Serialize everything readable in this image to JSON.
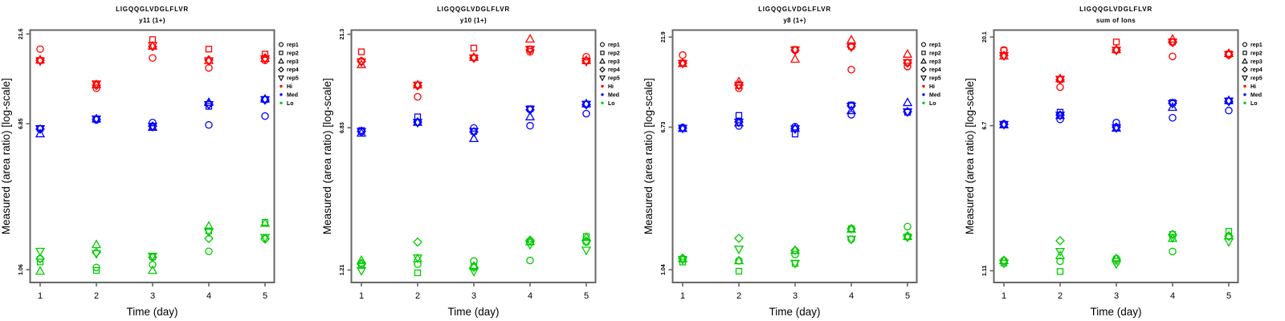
{
  "figure": {
    "xlabel": "Time (day)",
    "ylabel": "Measured (area ratio) [log-scale]",
    "background": "#ffffff",
    "frame_color": "#666666",
    "text_color": "#000000"
  },
  "legend": {
    "reps": [
      {
        "label": "rep1",
        "symbol": "circle"
      },
      {
        "label": "rep2",
        "symbol": "square"
      },
      {
        "label": "rep3",
        "symbol": "triangle-up"
      },
      {
        "label": "rep4",
        "symbol": "diamond"
      },
      {
        "label": "rep5",
        "symbol": "triangle-down"
      }
    ],
    "levels": [
      {
        "label": "Hi",
        "color": "#FF0000"
      },
      {
        "label": "Med",
        "color": "#0000FF"
      },
      {
        "label": "Lo",
        "color": "#00CC00"
      }
    ]
  },
  "chart_data": [
    {
      "type": "scatter",
      "title": "LIGQQGLVDGLFLVR",
      "subtitle": "y11 (1+)",
      "xlabel": "Time (day)",
      "ylabel": "Measured (area ratio) [log-scale]",
      "log_scale": true,
      "x": [
        1,
        2,
        3,
        4,
        5
      ],
      "xticks": [
        "1",
        "2",
        "3",
        "4",
        "5"
      ],
      "yticks": [
        {
          "value": 21.6,
          "label": "21.6"
        },
        {
          "value": 6.85,
          "label": "6.85"
        },
        {
          "value": 1.06,
          "label": "1.06"
        }
      ],
      "ylim": [
        0.9,
        22.7
      ],
      "groups": [
        {
          "name": "Hi",
          "color": "#FF0000",
          "reps": [
            {
              "name": "rep1",
              "symbol": "circle",
              "values": [
                17.8,
                10.8,
                15.9,
                14.0,
                15.4
              ]
            },
            {
              "name": "rep2",
              "symbol": "square",
              "values": [
                15.4,
                11.3,
                20.1,
                17.8,
                16.7
              ]
            },
            {
              "name": "rep3",
              "symbol": "triangle-up",
              "values": [
                15.5,
                11.3,
                18.5,
                15.4,
                15.8
              ]
            },
            {
              "name": "rep4",
              "symbol": "diamond",
              "values": [
                15.4,
                11.2,
                18.4,
                15.5,
                15.9
              ]
            },
            {
              "name": "rep5",
              "symbol": "triangle-down",
              "values": [
                15.3,
                11.4,
                18.6,
                15.3,
                15.7
              ]
            }
          ]
        },
        {
          "name": "Med",
          "color": "#0000FF",
          "reps": [
            {
              "name": "rep1",
              "symbol": "circle",
              "values": [
                6.42,
                7.2,
                6.96,
                6.75,
                7.56
              ]
            },
            {
              "name": "rep2",
              "symbol": "square",
              "values": [
                6.45,
                7.26,
                6.6,
                8.56,
                9.35
              ]
            },
            {
              "name": "rep3",
              "symbol": "triangle-up",
              "values": [
                6.03,
                7.3,
                6.55,
                9.0,
                9.4
              ]
            },
            {
              "name": "rep4",
              "symbol": "diamond",
              "values": [
                6.4,
                7.25,
                6.65,
                8.8,
                9.3
              ]
            },
            {
              "name": "rep5",
              "symbol": "triangle-down",
              "values": [
                6.43,
                7.28,
                6.62,
                8.75,
                9.32
              ]
            }
          ]
        },
        {
          "name": "Lo",
          "color": "#00CC00",
          "reps": [
            {
              "name": "rep1",
              "symbol": "circle",
              "values": [
                1.22,
                1.09,
                1.13,
                1.34,
                1.58
              ]
            },
            {
              "name": "rep2",
              "symbol": "square",
              "values": [
                1.17,
                1.05,
                1.25,
                1.74,
                1.94
              ]
            },
            {
              "name": "rep3",
              "symbol": "triangle-up",
              "values": [
                1.04,
                1.46,
                1.05,
                1.85,
                1.92
              ]
            },
            {
              "name": "rep4",
              "symbol": "diamond",
              "values": [
                1.22,
                1.32,
                1.24,
                1.58,
                1.57
              ]
            },
            {
              "name": "rep5",
              "symbol": "triangle-down",
              "values": [
                1.34,
                1.3,
                1.26,
                1.72,
                1.6
              ]
            }
          ]
        }
      ]
    },
    {
      "type": "scatter",
      "title": "LIGQQGLVDGLFLVR",
      "subtitle": "y10 (1+)",
      "xlabel": "Time (day)",
      "ylabel": "Measured (area ratio) [log-scale]",
      "log_scale": true,
      "x": [
        1,
        2,
        3,
        4,
        5
      ],
      "xticks": [
        "1",
        "2",
        "3",
        "4",
        "5"
      ],
      "yticks": [
        {
          "value": 21.3,
          "label": "21.3"
        },
        {
          "value": 6.83,
          "label": "6.83"
        },
        {
          "value": 1.21,
          "label": "1.21"
        }
      ],
      "ylim": [
        1.04,
        22.4
      ],
      "groups": [
        {
          "name": "Hi",
          "color": "#FF0000",
          "reps": [
            {
              "name": "rep1",
              "symbol": "circle",
              "values": [
                15.4,
                9.95,
                16.0,
                17.2,
                16.2
              ]
            },
            {
              "name": "rep2",
              "symbol": "square",
              "values": [
                17.2,
                11.5,
                18.0,
                17.8,
                15.4
              ]
            },
            {
              "name": "rep3",
              "symbol": "triangle-up",
              "values": [
                14.7,
                11.5,
                16.1,
                20.1,
                15.5
              ]
            },
            {
              "name": "rep4",
              "symbol": "diamond",
              "values": [
                15.3,
                11.4,
                16.0,
                17.6,
                15.4
              ]
            },
            {
              "name": "rep5",
              "symbol": "triangle-down",
              "values": [
                15.2,
                11.45,
                15.95,
                17.7,
                15.3
              ]
            }
          ]
        },
        {
          "name": "Med",
          "color": "#0000FF",
          "reps": [
            {
              "name": "rep1",
              "symbol": "circle",
              "values": [
                6.5,
                7.29,
                6.81,
                7.0,
                8.11
              ]
            },
            {
              "name": "rep2",
              "symbol": "square",
              "values": [
                6.6,
                7.8,
                6.54,
                8.6,
                9.1
              ]
            },
            {
              "name": "rep3",
              "symbol": "triangle-up",
              "values": [
                6.4,
                7.3,
                5.99,
                7.8,
                9.15
              ]
            },
            {
              "name": "rep4",
              "symbol": "diamond",
              "values": [
                6.55,
                7.32,
                6.5,
                8.5,
                9.05
              ]
            },
            {
              "name": "rep5",
              "symbol": "triangle-down",
              "values": [
                6.52,
                7.28,
                6.52,
                8.55,
                9.08
              ]
            }
          ]
        },
        {
          "name": "Lo",
          "color": "#00CC00",
          "reps": [
            {
              "name": "rep1",
              "symbol": "circle",
              "values": [
                1.32,
                1.3,
                1.35,
                1.36,
                1.7
              ]
            },
            {
              "name": "rep2",
              "symbol": "square",
              "values": [
                1.28,
                1.17,
                1.26,
                1.7,
                1.82
              ]
            },
            {
              "name": "rep3",
              "symbol": "triangle-up",
              "values": [
                1.36,
                1.39,
                1.27,
                1.71,
                1.8
              ]
            },
            {
              "name": "rep4",
              "symbol": "diamond",
              "values": [
                1.3,
                1.7,
                1.25,
                1.74,
                1.72
              ]
            },
            {
              "name": "rep5",
              "symbol": "triangle-down",
              "values": [
                1.2,
                1.4,
                1.19,
                1.65,
                1.54
              ]
            }
          ]
        }
      ]
    },
    {
      "type": "scatter",
      "title": "LIGQQGLVDGLFLVR",
      "subtitle": "y8 (1+)",
      "xlabel": "Time (day)",
      "ylabel": "Measured (area ratio) [log-scale]",
      "log_scale": true,
      "x": [
        1,
        2,
        3,
        4,
        5
      ],
      "xticks": [
        "1",
        "2",
        "3",
        "4",
        "5"
      ],
      "yticks": [
        {
          "value": 21.9,
          "label": "21.9"
        },
        {
          "value": 6.73,
          "label": "6.73"
        },
        {
          "value": 1.04,
          "label": "1.04"
        }
      ],
      "ylim": [
        0.88,
        24.0
      ],
      "groups": [
        {
          "name": "Hi",
          "color": "#FF0000",
          "reps": [
            {
              "name": "rep1",
              "symbol": "circle",
              "values": [
                17.3,
                11.2,
                18.5,
                14.3,
                14.9
              ]
            },
            {
              "name": "rep2",
              "symbol": "square",
              "values": [
                15.6,
                11.6,
                18.6,
                19.4,
                15.7
              ]
            },
            {
              "name": "rep3",
              "symbol": "triangle-up",
              "values": [
                15.5,
                12.2,
                16.4,
                21.1,
                17.5
              ]
            },
            {
              "name": "rep4",
              "symbol": "diamond",
              "values": [
                15.6,
                11.7,
                18.4,
                19.3,
                15.6
              ]
            },
            {
              "name": "rep5",
              "symbol": "triangle-down",
              "values": [
                15.5,
                11.65,
                18.5,
                19.2,
                15.65
              ]
            }
          ]
        },
        {
          "name": "Med",
          "color": "#0000FF",
          "reps": [
            {
              "name": "rep1",
              "symbol": "circle",
              "values": [
                6.7,
                6.84,
                6.77,
                7.92,
                8.2
              ]
            },
            {
              "name": "rep2",
              "symbol": "square",
              "values": [
                6.6,
                7.85,
                6.15,
                9.0,
                8.18
              ]
            },
            {
              "name": "rep3",
              "symbol": "triangle-up",
              "values": [
                6.62,
                7.13,
                6.63,
                8.36,
                9.29
              ]
            },
            {
              "name": "rep4",
              "symbol": "diamond",
              "values": [
                6.65,
                7.2,
                6.6,
                8.9,
                8.25
              ]
            },
            {
              "name": "rep5",
              "symbol": "triangle-down",
              "values": [
                6.63,
                7.18,
                6.58,
                8.85,
                8.22
              ]
            }
          ]
        },
        {
          "name": "Lo",
          "color": "#00CC00",
          "reps": [
            {
              "name": "rep1",
              "symbol": "circle",
              "values": [
                1.2,
                1.17,
                1.27,
                1.55,
                1.83
              ]
            },
            {
              "name": "rep2",
              "symbol": "square",
              "values": [
                1.15,
                1.02,
                1.13,
                1.78,
                1.6
              ]
            },
            {
              "name": "rep3",
              "symbol": "triangle-up",
              "values": [
                1.2,
                1.17,
                1.34,
                1.77,
                1.61
              ]
            },
            {
              "name": "rep4",
              "symbol": "diamond",
              "values": [
                1.21,
                1.57,
                1.34,
                1.78,
                1.62
              ]
            },
            {
              "name": "rep5",
              "symbol": "triangle-down",
              "values": [
                1.19,
                1.36,
                1.13,
                1.55,
                1.59
              ]
            }
          ]
        }
      ]
    },
    {
      "type": "scatter",
      "title": "LIGQQGLVDGLFLVR",
      "subtitle": "sum of Ions",
      "xlabel": "Time (day)",
      "ylabel": "Measured (area ratio) [log-scale]",
      "log_scale": true,
      "x": [
        1,
        2,
        3,
        4,
        5
      ],
      "xticks": [
        "1",
        "2",
        "3",
        "4",
        "5"
      ],
      "yticks": [
        {
          "value": 20.1,
          "label": "20.1"
        },
        {
          "value": 6.7,
          "label": "6.7"
        },
        {
          "value": 1.11,
          "label": "1.11"
        }
      ],
      "ylim": [
        0.96,
        21.9
      ],
      "groups": [
        {
          "name": "Hi",
          "color": "#FF0000",
          "reps": [
            {
              "name": "rep1",
              "symbol": "circle",
              "values": [
                17.1,
                10.8,
                17.1,
                15.8,
                16.1
              ]
            },
            {
              "name": "rep2",
              "symbol": "square",
              "values": [
                17.0,
                11.9,
                18.9,
                18.9,
                16.3
              ]
            },
            {
              "name": "rep3",
              "symbol": "triangle-up",
              "values": [
                15.9,
                12.0,
                17.2,
                19.6,
                16.4
              ]
            },
            {
              "name": "rep4",
              "symbol": "diamond",
              "values": [
                16.0,
                11.85,
                17.1,
                18.8,
                16.2
              ]
            },
            {
              "name": "rep5",
              "symbol": "triangle-down",
              "values": [
                15.95,
                11.9,
                17.05,
                18.85,
                16.15
              ]
            }
          ]
        },
        {
          "name": "Med",
          "color": "#0000FF",
          "reps": [
            {
              "name": "rep1",
              "symbol": "circle",
              "values": [
                6.85,
                7.24,
                6.96,
                7.39,
                8.08
              ]
            },
            {
              "name": "rep2",
              "symbol": "square",
              "values": [
                6.8,
                7.92,
                6.55,
                8.93,
                9.11
              ]
            },
            {
              "name": "rep3",
              "symbol": "triangle-up",
              "values": [
                6.78,
                7.61,
                6.5,
                8.41,
                9.15
              ]
            },
            {
              "name": "rep4",
              "symbol": "diamond",
              "values": [
                6.82,
                7.65,
                6.58,
                8.85,
                9.05
              ]
            },
            {
              "name": "rep5",
              "symbol": "triangle-down",
              "values": [
                6.8,
                7.62,
                6.52,
                8.8,
                9.08
              ]
            }
          ]
        },
        {
          "name": "Lo",
          "color": "#00CC00",
          "reps": [
            {
              "name": "rep1",
              "symbol": "circle",
              "values": [
                1.26,
                1.25,
                1.29,
                1.41,
                1.71
              ]
            },
            {
              "name": "rep2",
              "symbol": "square",
              "values": [
                1.22,
                1.1,
                1.25,
                1.74,
                1.81
              ]
            },
            {
              "name": "rep3",
              "symbol": "triangle-up",
              "values": [
                1.26,
                1.34,
                1.29,
                1.66,
                1.71
              ]
            },
            {
              "name": "rep4",
              "symbol": "diamond",
              "values": [
                1.26,
                1.61,
                1.28,
                1.74,
                1.7
              ]
            },
            {
              "name": "rep5",
              "symbol": "triangle-down",
              "values": [
                1.22,
                1.41,
                1.21,
                1.67,
                1.59
              ]
            }
          ]
        }
      ]
    }
  ]
}
